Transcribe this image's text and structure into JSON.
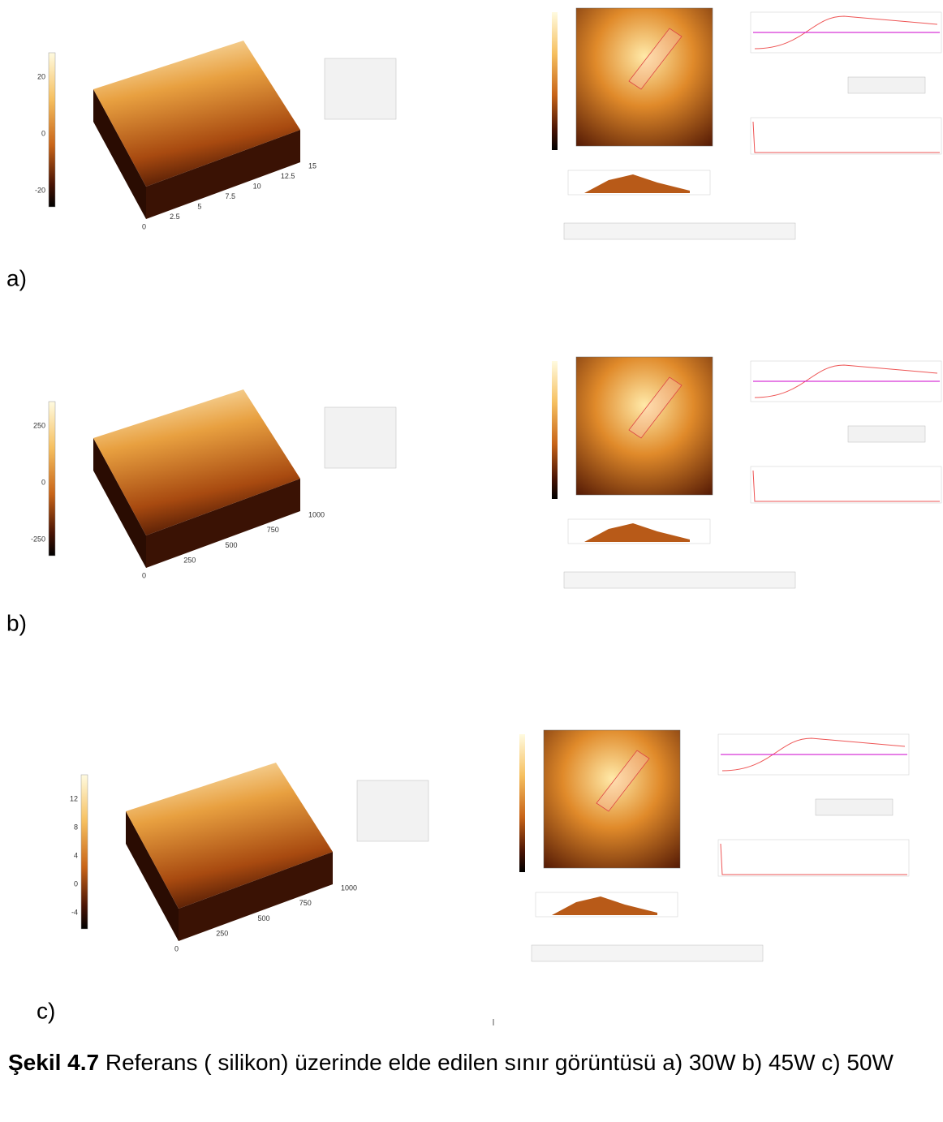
{
  "panels": [
    {
      "label": "a)",
      "surface_ticks": [
        0,
        2.5,
        5,
        7.5,
        10,
        12.5,
        15
      ],
      "colorbar_ticks": [
        20,
        0,
        -20
      ]
    },
    {
      "label": "b)",
      "surface_ticks": [
        0,
        250,
        500,
        750,
        1000
      ],
      "colorbar_ticks": [
        250,
        0,
        -250
      ]
    },
    {
      "label": "c)",
      "surface_ticks": [
        0,
        250,
        500,
        750,
        1000
      ],
      "colorbar_ticks": [
        12,
        8,
        4,
        0,
        -4
      ]
    }
  ],
  "caption": {
    "label": "Şekil 4.7",
    "text": "Referans ( silikon) üzerinde elde edilen sınır görüntüsü a) 30W b) 45W c) 50W"
  }
}
